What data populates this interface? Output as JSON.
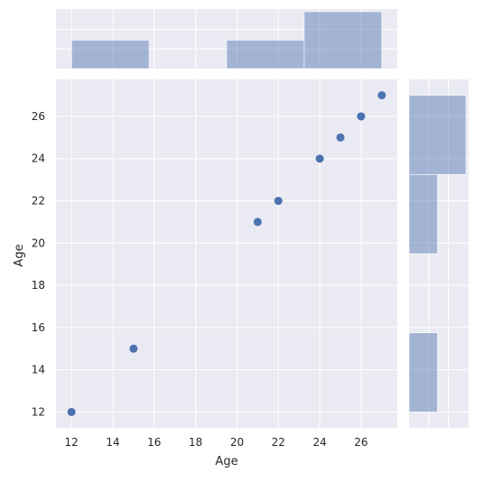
{
  "chart_data": {
    "type": "scatter",
    "title": "",
    "xlabel": "Age",
    "ylabel": "Age",
    "xlim": [
      11.25,
      27.75
    ],
    "ylim": [
      11.25,
      27.75
    ],
    "xticks": [
      12,
      14,
      16,
      18,
      20,
      22,
      24,
      26
    ],
    "yticks": [
      12,
      14,
      16,
      18,
      20,
      22,
      24,
      26
    ],
    "grid": true,
    "points": [
      {
        "x": 12,
        "y": 12
      },
      {
        "x": 15,
        "y": 15
      },
      {
        "x": 21,
        "y": 21
      },
      {
        "x": 22,
        "y": 22
      },
      {
        "x": 24,
        "y": 24
      },
      {
        "x": 25,
        "y": 25
      },
      {
        "x": 26,
        "y": 26
      },
      {
        "x": 27,
        "y": 27
      }
    ],
    "marginal_hist_x": {
      "bins": [
        [
          12,
          15.75
        ],
        [
          15.75,
          19.5
        ],
        [
          19.5,
          23.25
        ],
        [
          23.25,
          27
        ]
      ],
      "counts": [
        2,
        0,
        2,
        4
      ]
    },
    "marginal_hist_y": {
      "bins": [
        [
          12,
          15.75
        ],
        [
          15.75,
          19.5
        ],
        [
          19.5,
          23.25
        ],
        [
          23.25,
          27
        ]
      ],
      "counts": [
        2,
        0,
        2,
        4
      ]
    },
    "colors": {
      "points": "#4c72b0",
      "bars": "#4c72b0",
      "background": "#eaeaf2",
      "grid": "#ffffff"
    }
  }
}
